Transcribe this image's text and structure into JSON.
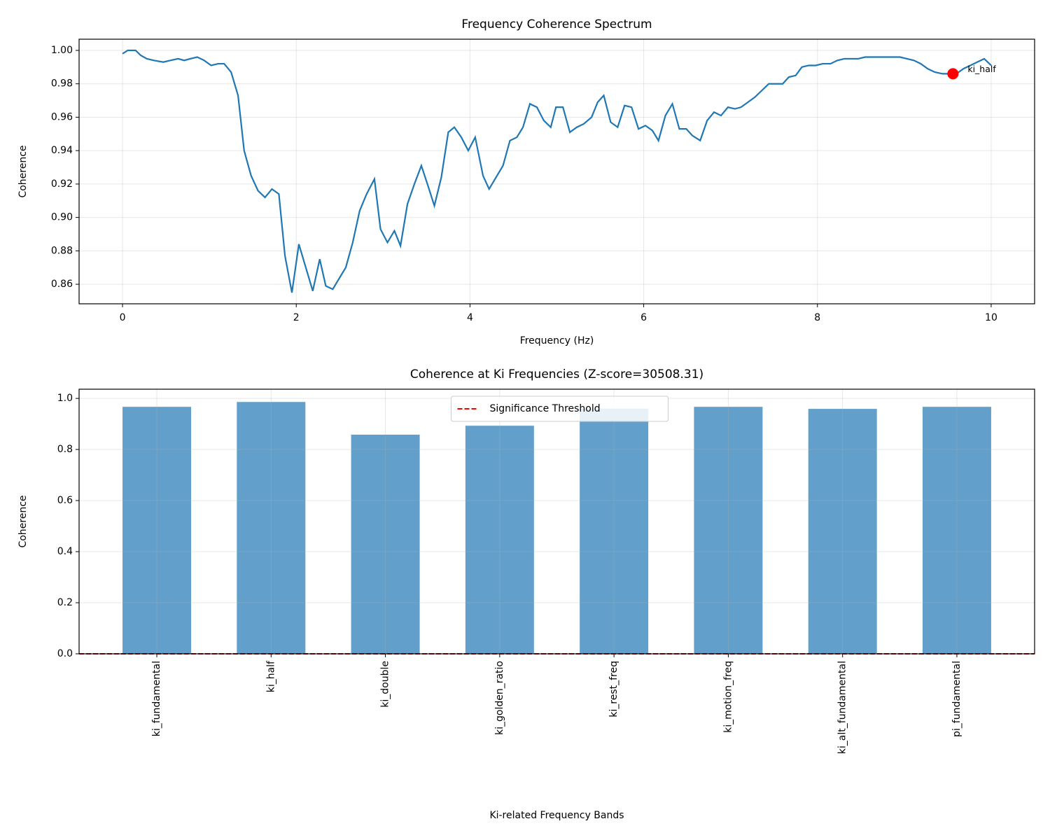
{
  "chart_data": [
    {
      "type": "line",
      "title": "Frequency Coherence Spectrum",
      "xlabel": "Frequency (Hz)",
      "ylabel": "Coherence",
      "color": "#1f77b4",
      "grid": true,
      "xlim": [
        -0.5,
        10.5
      ],
      "xticks": [
        0,
        2,
        4,
        6,
        8,
        10
      ],
      "ylim": [
        0.8483,
        1.0067
      ],
      "yticks": [
        0.86,
        0.88,
        {
          "value": 0.9,
          "label": "0.90"
        },
        0.92,
        0.94,
        0.96,
        0.98,
        {
          "value": 1.0,
          "label": "1.00"
        }
      ],
      "x": [
        0,
        0.06,
        0.15,
        0.21,
        0.28,
        0.36,
        0.47,
        0.55,
        0.64,
        0.71,
        0.78,
        0.86,
        0.94,
        1.02,
        1.1,
        1.17,
        1.25,
        1.33,
        1.4,
        1.48,
        1.56,
        1.64,
        1.72,
        1.8,
        1.87,
        1.95,
        2.03,
        2.11,
        2.19,
        2.27,
        2.34,
        2.42,
        2.5,
        2.57,
        2.65,
        2.73,
        2.81,
        2.9,
        2.97,
        3.05,
        3.13,
        3.2,
        3.28,
        3.36,
        3.44,
        3.51,
        3.59,
        3.67,
        3.75,
        3.82,
        3.9,
        3.98,
        4.06,
        4.15,
        4.22,
        4.3,
        4.38,
        4.46,
        4.54,
        4.61,
        4.69,
        4.77,
        4.85,
        4.93,
        4.99,
        5.07,
        5.15,
        5.23,
        5.31,
        5.4,
        5.47,
        5.54,
        5.62,
        5.7,
        5.78,
        5.86,
        5.94,
        6.02,
        6.1,
        6.17,
        6.25,
        6.33,
        6.41,
        6.49,
        6.56,
        6.65,
        6.73,
        6.81,
        6.89,
        6.97,
        7.05,
        7.12,
        7.2,
        7.28,
        7.36,
        7.44,
        7.52,
        7.6,
        7.67,
        7.75,
        7.82,
        7.9,
        7.98,
        8.06,
        8.15,
        8.23,
        8.31,
        8.39,
        8.47,
        8.55,
        8.63,
        8.71,
        8.79,
        8.87,
        8.95,
        9.03,
        9.11,
        9.19,
        9.27,
        9.35,
        9.44,
        9.52,
        9.6,
        9.68,
        9.76,
        9.84,
        9.92,
        10.0
      ],
      "values": [
        0.998,
        1.0,
        1.0,
        0.997,
        0.995,
        0.994,
        0.993,
        0.994,
        0.995,
        0.994,
        0.995,
        0.996,
        0.994,
        0.991,
        0.992,
        0.992,
        0.987,
        0.973,
        0.94,
        0.925,
        0.916,
        0.912,
        0.917,
        0.914,
        0.877,
        0.855,
        0.884,
        0.87,
        0.856,
        0.875,
        0.859,
        0.857,
        0.864,
        0.87,
        0.885,
        0.904,
        0.914,
        0.923,
        0.893,
        0.885,
        0.892,
        0.883,
        0.908,
        0.92,
        0.931,
        0.92,
        0.907,
        0.924,
        0.951,
        0.954,
        0.948,
        0.94,
        0.948,
        0.925,
        0.917,
        0.924,
        0.931,
        0.946,
        0.948,
        0.954,
        0.968,
        0.966,
        0.958,
        0.954,
        0.966,
        0.966,
        0.951,
        0.954,
        0.956,
        0.96,
        0.969,
        0.973,
        0.957,
        0.954,
        0.967,
        0.966,
        0.953,
        0.955,
        0.952,
        0.946,
        0.961,
        0.968,
        0.953,
        0.953,
        0.949,
        0.946,
        0.958,
        0.963,
        0.961,
        0.966,
        0.965,
        0.966,
        0.969,
        0.972,
        0.976,
        0.98,
        0.98,
        0.98,
        0.984,
        0.985,
        0.99,
        0.991,
        0.991,
        0.992,
        0.992,
        0.994,
        0.995,
        0.995,
        0.995,
        0.996,
        0.996,
        0.996,
        0.996,
        0.996,
        0.996,
        0.995,
        0.994,
        0.992,
        0.989,
        0.987,
        0.986,
        0.986,
        0.986,
        0.989,
        0.991,
        0.993,
        0.995,
        0.991
      ],
      "annotations": [
        {
          "text": "ki_half",
          "x": 9.56,
          "y": 0.986,
          "color": "#ff0000"
        }
      ]
    },
    {
      "type": "bar",
      "title": "Coherence at Ki Frequencies (Z-score=30508.31)",
      "xlabel": "Ki-related Frequency Bands",
      "ylabel": "Coherence",
      "color": "#62a0cb",
      "grid": true,
      "legend": "upper center",
      "categories": [
        "ki_fundamental",
        "ki_half",
        "ki_double",
        "ki_golden_ratio",
        "ki_rest_freq",
        "ki_motion_freq",
        "ki_alt_fundamental",
        "pi_fundamental"
      ],
      "values": [
        0.967,
        0.986,
        0.858,
        0.893,
        0.96,
        0.967,
        0.959,
        0.967
      ],
      "ylim": [
        0,
        1.036
      ],
      "yticks": [
        {
          "value": 0,
          "label": "0.0"
        },
        0.2,
        0.4,
        0.6,
        0.8,
        {
          "value": 1,
          "label": "1.0"
        }
      ],
      "threshold": {
        "name": "Significance Threshold",
        "value": 0,
        "color": "#ff0000"
      }
    }
  ]
}
